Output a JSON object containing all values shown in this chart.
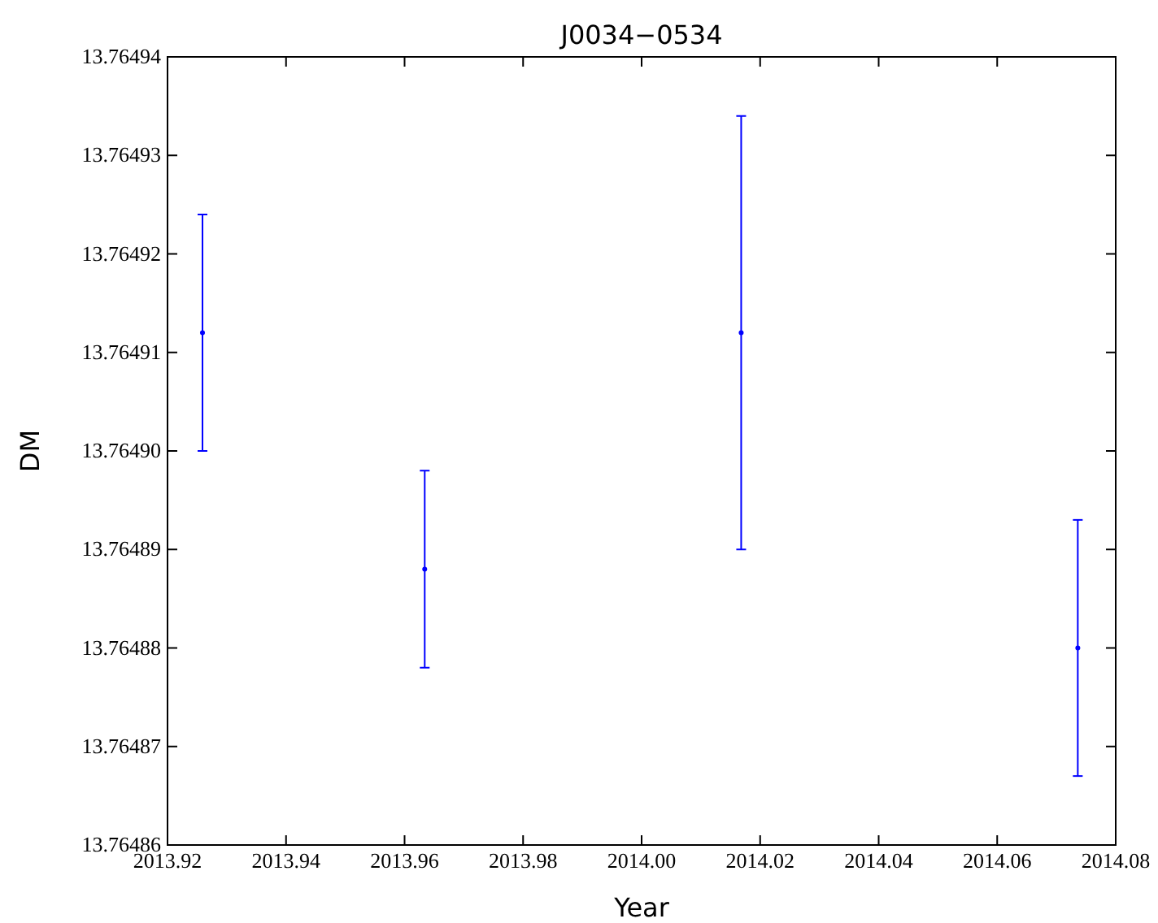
{
  "chart_data": {
    "type": "scatter",
    "title": "J0034−0534",
    "xlabel": "Year",
    "ylabel": "DM",
    "x": [
      2013.9259,
      2013.9634,
      2014.0168,
      2014.0736
    ],
    "values": [
      13.764912,
      13.764888,
      13.764912,
      13.76488
    ],
    "errors": [
      1.2e-05,
      1e-05,
      2.2e-05,
      1.3e-05
    ],
    "color": "#0000ff",
    "xlim": [
      2013.92,
      2014.08
    ],
    "xticks": [
      2013.92,
      2013.94,
      2013.96,
      2013.98,
      {
        "value": 2014.0,
        "label": "2014.00"
      },
      {
        "value": 2014.02,
        "label": "2014.02"
      },
      2014.04,
      2014.06,
      2014.08
    ],
    "ylim": [
      13.76486,
      13.76494
    ],
    "yticks": [
      13.76486,
      13.76487,
      13.76488,
      13.76489,
      {
        "value": 13.7649,
        "label": "13.76490"
      },
      13.76491,
      13.76492,
      13.76493,
      13.76494
    ],
    "grid": false
  }
}
